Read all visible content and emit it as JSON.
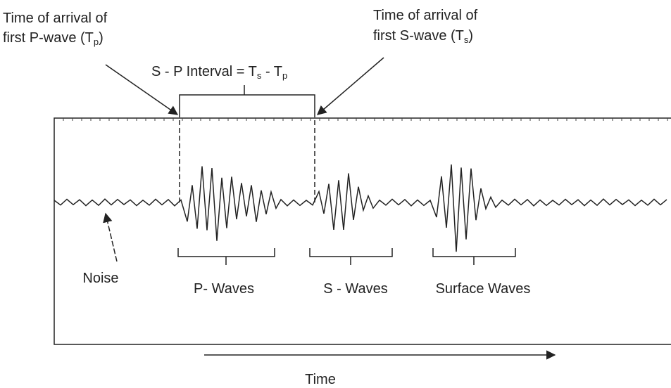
{
  "p_arrival": {
    "line1": "Time of arrival of",
    "line2": "first P-wave (T",
    "sub": "p",
    "close": ")"
  },
  "s_arrival": {
    "line1": "Time of arrival of",
    "line2": "first S-wave (T",
    "sub": "s",
    "close": ")"
  },
  "interval": {
    "text": "S - P Interval = T",
    "sub1": "s",
    "minus": " - T",
    "sub2": "p"
  },
  "labels": {
    "noise": "Noise",
    "p_waves": "P- Waves",
    "s_waves": "S - Waves",
    "surface_waves": "Surface Waves",
    "time": "Time"
  }
}
